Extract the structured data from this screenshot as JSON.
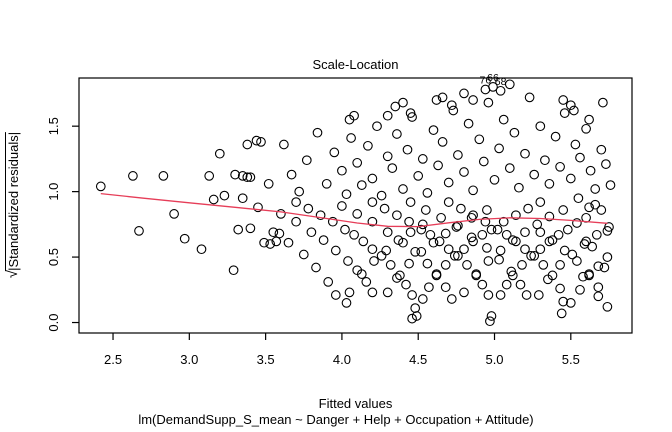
{
  "title": "Scale-Location",
  "xlabel": "Fitted values",
  "model_formula": "lm(DemandSupp_S_mean ~ Danger + Help + Occupation + Attitude)",
  "ylabel": {
    "radical": "√",
    "text": "|Standardized residuals|"
  },
  "colors": {
    "point": "#000000",
    "smooth_line": "#e63d58",
    "axis": "#000000",
    "background": "#ffffff",
    "label_text": "#000000"
  },
  "chart_data": {
    "type": "scatter",
    "title": "Scale-Location",
    "xlabel": "Fitted values",
    "ylabel": "sqrt(|Standardized residuals|)",
    "xlim": [
      2.277,
      5.901
    ],
    "ylim": [
      -0.08,
      1.868
    ],
    "xticks": [
      "2.5",
      "3.0",
      "3.5",
      "4.0",
      "4.5",
      "5.0",
      "5.5"
    ],
    "yticks": [
      "0.0",
      "0.5",
      "1.0",
      "1.5"
    ],
    "grid": false,
    "legend": null,
    "labeled_points": [
      {
        "label": "76",
        "x": 4.94,
        "y": 1.78
      },
      {
        "label": "66",
        "x": 4.99,
        "y": 1.8
      },
      {
        "label": "68",
        "x": 5.04,
        "y": 1.77
      }
    ],
    "smooth_line": [
      [
        2.42,
        0.985
      ],
      [
        2.7,
        0.95
      ],
      [
        3.0,
        0.915
      ],
      [
        3.3,
        0.88
      ],
      [
        3.6,
        0.845
      ],
      [
        3.9,
        0.795
      ],
      [
        4.1,
        0.76
      ],
      [
        4.3,
        0.735
      ],
      [
        4.5,
        0.733
      ],
      [
        4.7,
        0.762
      ],
      [
        4.9,
        0.788
      ],
      [
        5.1,
        0.8
      ],
      [
        5.3,
        0.795
      ],
      [
        5.5,
        0.78
      ],
      [
        5.74,
        0.758
      ]
    ],
    "points": [
      [
        2.42,
        1.04
      ],
      [
        2.63,
        1.12
      ],
      [
        2.67,
        0.7
      ],
      [
        2.83,
        1.12
      ],
      [
        2.9,
        0.83
      ],
      [
        2.97,
        0.64
      ],
      [
        3.08,
        0.56
      ],
      [
        3.13,
        1.12
      ],
      [
        3.16,
        0.94
      ],
      [
        3.2,
        1.29
      ],
      [
        3.23,
        0.97
      ],
      [
        3.29,
        0.4
      ],
      [
        3.32,
        0.71
      ],
      [
        3.3,
        1.13
      ],
      [
        3.35,
        1.12
      ],
      [
        3.38,
        1.11
      ],
      [
        3.4,
        1.11
      ],
      [
        3.38,
        1.36
      ],
      [
        3.44,
        1.39
      ],
      [
        3.47,
        1.38
      ],
      [
        3.52,
        1.06
      ],
      [
        3.49,
        0.61
      ],
      [
        3.53,
        0.6
      ],
      [
        3.57,
        0.62
      ],
      [
        3.59,
        0.68
      ],
      [
        3.45,
        0.88
      ],
      [
        3.4,
        0.72
      ],
      [
        3.35,
        0.95
      ],
      [
        3.7,
        0.92
      ],
      [
        3.78,
        0.87
      ],
      [
        3.86,
        0.82
      ],
      [
        3.94,
        0.77
      ],
      [
        4.02,
        0.71
      ],
      [
        4.08,
        0.67
      ],
      [
        4.14,
        0.62
      ],
      [
        4.2,
        0.56
      ],
      [
        4.26,
        0.51
      ],
      [
        4.32,
        0.44
      ],
      [
        4.38,
        0.36
      ],
      [
        4.42,
        0.29
      ],
      [
        4.46,
        0.21
      ],
      [
        4.48,
        0.11
      ],
      [
        4.53,
        0.18
      ],
      [
        4.57,
        0.27
      ],
      [
        4.62,
        0.36
      ],
      [
        4.68,
        0.44
      ],
      [
        4.74,
        0.51
      ],
      [
        4.8,
        0.56
      ],
      [
        4.86,
        0.62
      ],
      [
        4.92,
        0.67
      ],
      [
        4.98,
        0.71
      ],
      [
        5.06,
        0.77
      ],
      [
        5.14,
        0.82
      ],
      [
        5.22,
        0.87
      ],
      [
        5.3,
        0.92
      ],
      [
        4.2,
        0.92
      ],
      [
        4.28,
        0.87
      ],
      [
        4.36,
        0.82
      ],
      [
        4.44,
        0.77
      ],
      [
        4.52,
        0.71
      ],
      [
        4.58,
        0.67
      ],
      [
        4.64,
        0.62
      ],
      [
        4.7,
        0.56
      ],
      [
        4.76,
        0.51
      ],
      [
        4.82,
        0.44
      ],
      [
        4.88,
        0.36
      ],
      [
        4.92,
        0.29
      ],
      [
        4.96,
        0.21
      ],
      [
        4.98,
        0.05
      ],
      [
        5.04,
        0.21
      ],
      [
        5.08,
        0.29
      ],
      [
        5.12,
        0.36
      ],
      [
        5.18,
        0.44
      ],
      [
        5.24,
        0.51
      ],
      [
        5.3,
        0.56
      ],
      [
        5.36,
        0.62
      ],
      [
        5.42,
        0.67
      ],
      [
        5.48,
        0.71
      ],
      [
        5.54,
        0.76
      ],
      [
        5.6,
        0.8
      ],
      [
        4.7,
        0.92
      ],
      [
        4.78,
        0.87
      ],
      [
        4.86,
        0.82
      ],
      [
        4.94,
        0.77
      ],
      [
        5.02,
        0.71
      ],
      [
        5.08,
        0.67
      ],
      [
        5.14,
        0.62
      ],
      [
        5.2,
        0.56
      ],
      [
        5.26,
        0.51
      ],
      [
        5.32,
        0.44
      ],
      [
        5.38,
        0.36
      ],
      [
        5.43,
        0.26
      ],
      [
        5.45,
        0.16
      ],
      [
        5.44,
        0.07
      ],
      [
        5.5,
        0.15
      ],
      [
        5.56,
        0.25
      ],
      [
        5.62,
        0.36
      ],
      [
        5.68,
        0.43
      ],
      [
        5.74,
        0.5
      ],
      [
        3.6,
        0.83
      ],
      [
        3.7,
        0.77
      ],
      [
        3.8,
        0.69
      ],
      [
        3.88,
        0.63
      ],
      [
        3.96,
        0.55
      ],
      [
        4.04,
        0.47
      ],
      [
        4.1,
        0.4
      ],
      [
        4.16,
        0.31
      ],
      [
        4.2,
        0.23
      ],
      [
        4.3,
        0.23
      ],
      [
        4.36,
        0.34
      ],
      [
        4.44,
        0.45
      ],
      [
        4.52,
        0.54
      ],
      [
        4.6,
        0.61
      ],
      [
        4.68,
        0.68
      ],
      [
        4.76,
        0.74
      ],
      [
        4.85,
        0.8
      ],
      [
        4.95,
        0.86
      ],
      [
        4.45,
        0.92
      ],
      [
        4.55,
        0.86
      ],
      [
        4.65,
        0.8
      ],
      [
        4.75,
        0.73
      ],
      [
        4.85,
        0.65
      ],
      [
        4.95,
        0.57
      ],
      [
        5.03,
        0.48
      ],
      [
        5.11,
        0.39
      ],
      [
        5.17,
        0.29
      ],
      [
        5.21,
        0.21
      ],
      [
        5.29,
        0.21
      ],
      [
        5.35,
        0.33
      ],
      [
        5.43,
        0.44
      ],
      [
        5.51,
        0.52
      ],
      [
        5.59,
        0.6
      ],
      [
        5.67,
        0.67
      ],
      [
        5.75,
        0.73
      ],
      [
        4.0,
        0.89
      ],
      [
        4.1,
        0.83
      ],
      [
        4.2,
        0.77
      ],
      [
        4.3,
        0.69
      ],
      [
        4.4,
        0.61
      ],
      [
        4.48,
        0.54
      ],
      [
        4.56,
        0.45
      ],
      [
        4.62,
        0.37
      ],
      [
        4.68,
        0.27
      ],
      [
        4.72,
        0.18
      ],
      [
        4.8,
        0.23
      ],
      [
        4.88,
        0.37
      ],
      [
        4.96,
        0.47
      ],
      [
        5.04,
        0.55
      ],
      [
        5.12,
        0.63
      ],
      [
        5.2,
        0.69
      ],
      [
        5.28,
        0.75
      ],
      [
        5.36,
        0.81
      ],
      [
        5.45,
        0.86
      ],
      [
        5.3,
        0.69
      ],
      [
        5.38,
        0.63
      ],
      [
        5.46,
        0.55
      ],
      [
        5.54,
        0.47
      ],
      [
        5.62,
        0.37
      ],
      [
        5.68,
        0.27
      ],
      [
        3.55,
        0.69
      ],
      [
        3.65,
        0.61
      ],
      [
        3.75,
        0.52
      ],
      [
        3.83,
        0.42
      ],
      [
        3.91,
        0.31
      ],
      [
        3.96,
        0.21
      ],
      [
        4.03,
        0.15
      ],
      [
        4.05,
        0.23
      ],
      [
        4.13,
        0.37
      ],
      [
        4.21,
        0.47
      ],
      [
        4.29,
        0.55
      ],
      [
        4.37,
        0.63
      ],
      [
        4.45,
        0.69
      ],
      [
        4.53,
        0.75
      ],
      [
        3.62,
        1.36
      ],
      [
        3.67,
        1.13
      ],
      [
        3.72,
        1.0
      ],
      [
        3.77,
        1.24
      ],
      [
        3.84,
        1.45
      ],
      [
        3.9,
        1.06
      ],
      [
        3.95,
        1.3
      ],
      [
        4.0,
        1.16
      ],
      [
        4.03,
        0.98
      ],
      [
        4.06,
        1.41
      ],
      [
        4.1,
        1.22
      ],
      [
        4.13,
        1.05
      ],
      [
        4.17,
        1.35
      ],
      [
        4.2,
        1.1
      ],
      [
        4.23,
        1.5
      ],
      [
        4.26,
        0.97
      ],
      [
        4.3,
        1.27
      ],
      [
        4.33,
        1.18
      ],
      [
        4.36,
        1.44
      ],
      [
        4.4,
        1.02
      ],
      [
        4.43,
        1.32
      ],
      [
        4.46,
        1.57
      ],
      [
        4.5,
        1.12
      ],
      [
        4.53,
        1.25
      ],
      [
        4.56,
        0.99
      ],
      [
        4.6,
        1.47
      ],
      [
        4.63,
        1.2
      ],
      [
        4.66,
        1.38
      ],
      [
        4.7,
        1.07
      ],
      [
        4.73,
        1.62
      ],
      [
        4.76,
        1.28
      ],
      [
        4.8,
        1.15
      ],
      [
        4.83,
        1.52
      ],
      [
        4.86,
        1.01
      ],
      [
        4.9,
        1.4
      ],
      [
        4.93,
        1.23
      ],
      [
        4.96,
        1.68
      ],
      [
        5.0,
        1.09
      ],
      [
        5.03,
        1.33
      ],
      [
        5.06,
        1.55
      ],
      [
        5.1,
        1.18
      ],
      [
        5.13,
        1.45
      ],
      [
        5.16,
        1.03
      ],
      [
        5.2,
        1.29
      ],
      [
        5.23,
        1.72
      ],
      [
        5.26,
        1.13
      ],
      [
        5.3,
        1.5
      ],
      [
        5.33,
        1.24
      ],
      [
        5.36,
        1.06
      ],
      [
        5.4,
        1.42
      ],
      [
        5.43,
        1.19
      ],
      [
        5.46,
        1.6
      ],
      [
        5.5,
        1.1
      ],
      [
        5.53,
        1.36
      ],
      [
        5.56,
        1.26
      ],
      [
        5.6,
        1.48
      ],
      [
        5.63,
        1.16
      ],
      [
        5.66,
        1.02
      ],
      [
        5.7,
        1.32
      ],
      [
        5.73,
        1.21
      ],
      [
        4.62,
        1.7
      ],
      [
        4.66,
        1.72
      ],
      [
        4.72,
        1.66
      ],
      [
        4.8,
        1.75
      ],
      [
        4.86,
        1.7
      ],
      [
        5.1,
        1.82
      ],
      [
        4.35,
        1.65
      ],
      [
        4.4,
        1.68
      ],
      [
        5.45,
        1.7
      ],
      [
        5.5,
        1.66
      ],
      [
        5.71,
        1.68
      ],
      [
        5.52,
        1.62
      ],
      [
        5.62,
        1.55
      ],
      [
        4.05,
        1.55
      ],
      [
        4.08,
        1.58
      ],
      [
        4.45,
        1.6
      ],
      [
        4.3,
        1.58
      ],
      [
        5.62,
        0.88
      ],
      [
        5.66,
        0.9
      ],
      [
        5.7,
        0.86
      ],
      [
        5.74,
        0.7
      ],
      [
        5.6,
        0.62
      ],
      [
        5.64,
        0.58
      ],
      [
        5.72,
        0.42
      ],
      [
        5.68,
        0.2
      ],
      [
        5.74,
        0.12
      ],
      [
        5.58,
        0.35
      ],
      [
        5.55,
        0.95
      ],
      [
        5.76,
        1.05
      ],
      [
        4.49,
        0.05
      ],
      [
        4.97,
        0.01
      ],
      [
        4.46,
        0.03
      ]
    ]
  }
}
